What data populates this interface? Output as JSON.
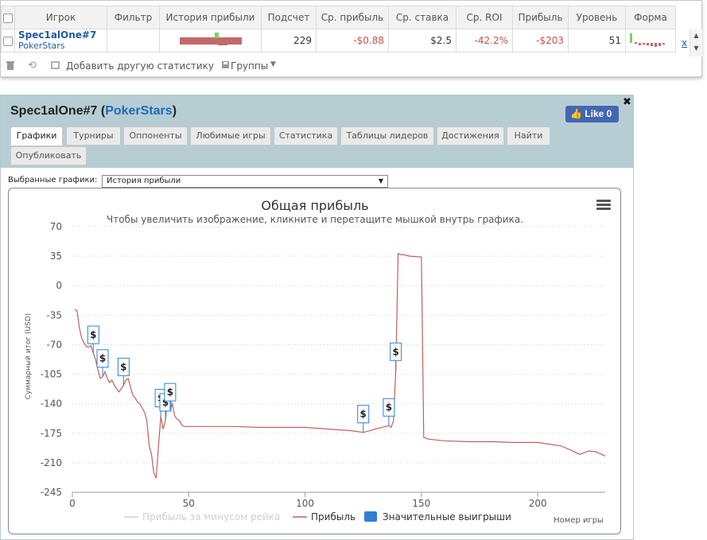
{
  "stats": {
    "columns": [
      "Игрок",
      "Фильтр",
      "История прибыли",
      "Подсчет",
      "Ср. прибыль",
      "Ср. ставка",
      "Ср. ROI",
      "Прибыль",
      "Уровень",
      "Форма"
    ],
    "row": {
      "player": "Spec1alOne#7",
      "site": "PokerStars",
      "filter": "",
      "count": "229",
      "avg_profit": "-$0.88",
      "avg_stake": "$2.5",
      "avg_roi": "-42.2%",
      "profit": "-$203",
      "level": "51",
      "remove": "x"
    },
    "toolbar": {
      "add_stat": "Добавить другую статистику",
      "groups": "Группы"
    },
    "colors": {
      "negative": "#c8524c",
      "link": "#1e5aa6"
    }
  },
  "dialog": {
    "player": "Spec1alOne#7",
    "site": "PokerStars",
    "like_label": "Like 0",
    "tabs": [
      "Графики",
      "Турниры",
      "Оппоненты",
      "Любимые игры",
      "Статистика",
      "Таблицы лидеров",
      "Достижения",
      "Найти",
      "Опубликовать"
    ],
    "active_tab": "Графики",
    "chart_selector_label": "Выбранные графики:",
    "chart_selector_value": "История прибыли"
  },
  "chart_data": {
    "type": "line",
    "title": "Общая прибыль",
    "subtitle": "Чтобы увеличить изображение, кликните и перетащите мышкой внутрь графика.",
    "xlabel": "Номер игры",
    "ylabel": "Суммарный итог (USD)",
    "xlim": [
      0,
      229
    ],
    "ylim": [
      -245,
      70
    ],
    "xticks": [
      0,
      50,
      100,
      150,
      200
    ],
    "yticks": [
      70,
      35,
      0,
      -35,
      -70,
      -105,
      -140,
      -175,
      -210,
      -245
    ],
    "grid": true,
    "legend_position": "bottom",
    "legend": [
      "Прибыль за минусом рейка",
      "Прибыль",
      "Значительные выигрыши"
    ],
    "series": [
      {
        "name": "Прибыль",
        "color": "#c0605c",
        "x": [
          1,
          2,
          3,
          4,
          5,
          6,
          7,
          8,
          9,
          10,
          11,
          12,
          13,
          14,
          15,
          16,
          17,
          18,
          19,
          20,
          21,
          22,
          23,
          24,
          25,
          26,
          27,
          28,
          29,
          30,
          31,
          32,
          33,
          34,
          35,
          36,
          37,
          38,
          39,
          40,
          41,
          42,
          43,
          44,
          45,
          46,
          47,
          48,
          50,
          55,
          60,
          70,
          80,
          90,
          100,
          110,
          120,
          125,
          128,
          130,
          133,
          136,
          137,
          138,
          139,
          140,
          141,
          142,
          145,
          150,
          151,
          152,
          153,
          160,
          170,
          180,
          190,
          200,
          210,
          215,
          218,
          220,
          222,
          225,
          229
        ],
        "y": [
          -28,
          -30,
          -50,
          -62,
          -68,
          -72,
          -73,
          -71,
          -80,
          -88,
          -100,
          -110,
          -108,
          -102,
          -110,
          -115,
          -112,
          -118,
          -122,
          -126,
          -122,
          -118,
          -112,
          -110,
          -120,
          -130,
          -133,
          -138,
          -140,
          -145,
          -150,
          -160,
          -190,
          -200,
          -222,
          -228,
          -190,
          -155,
          -170,
          -160,
          -130,
          -148,
          -140,
          -155,
          -158,
          -160,
          -165,
          -167,
          -167,
          -167,
          -167,
          -167,
          -168,
          -168,
          -168,
          -170,
          -172,
          -174,
          -172,
          -170,
          -168,
          -166,
          -168,
          -160,
          -100,
          38,
          37,
          37,
          35,
          34,
          -180,
          -181,
          -182,
          -184,
          -185,
          -185,
          -186,
          -186,
          -190,
          -196,
          -200,
          -198,
          -196,
          -197,
          -202
        ]
      }
    ],
    "big_wins_x": [
      9,
      13,
      22,
      38,
      40,
      42,
      125,
      136,
      139
    ]
  }
}
